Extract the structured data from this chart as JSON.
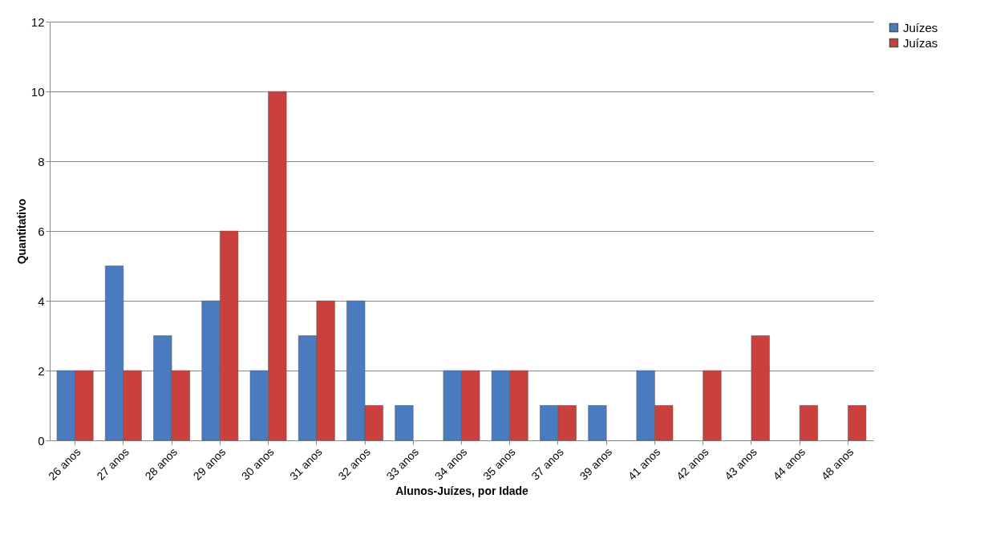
{
  "chart_data": {
    "type": "bar",
    "xlabel": "Alunos-Juízes, por Idade",
    "ylabel": "Quantitativo",
    "categories": [
      "26 anos",
      "27 anos",
      "28 anos",
      "29 anos",
      "30 anos",
      "31 anos",
      "32 anos",
      "33 anos",
      "34 anos",
      "35 anos",
      "37 anos",
      "39 anos",
      "41 anos",
      "42 anos",
      "43 anos",
      "44 anos",
      "48 anos"
    ],
    "series": [
      {
        "name": "Juízes",
        "color": "#4a7bbf",
        "values": [
          2,
          5,
          3,
          4,
          2,
          3,
          4,
          1,
          2,
          2,
          1,
          1,
          2,
          null,
          null,
          null,
          null
        ]
      },
      {
        "name": "Juízas",
        "color": "#c9403c",
        "values": [
          2,
          2,
          2,
          6,
          10,
          4,
          1,
          null,
          2,
          2,
          1,
          null,
          1,
          2,
          3,
          1,
          1
        ]
      }
    ],
    "ylim": [
      0,
      12
    ],
    "yticks": [
      0,
      2,
      4,
      6,
      8,
      10,
      12
    ],
    "grid": "y",
    "legend": "right"
  }
}
